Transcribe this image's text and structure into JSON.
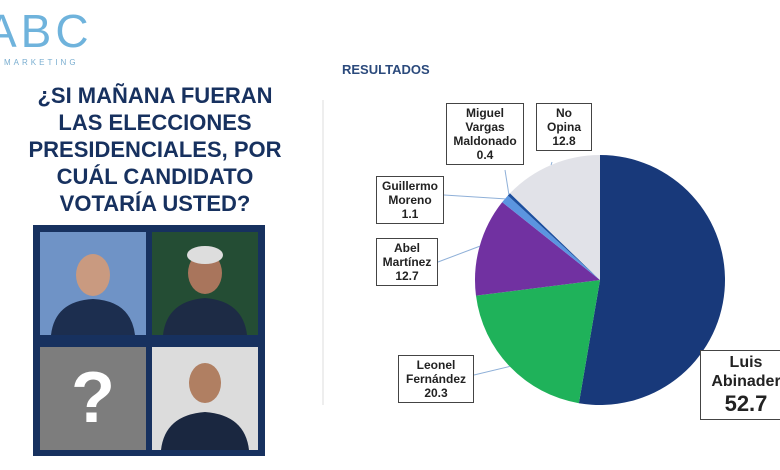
{
  "logo": {
    "text": "ABC",
    "subtext": "MARKETING"
  },
  "question": "¿SI MAÑANA FUERAN LAS ELECCIONES PRESIDENCIALES, POR CUÁL CANDIDATO VOTARÍA USTED?",
  "photos": {
    "unknown_label": "?"
  },
  "chart_data": {
    "type": "pie",
    "title": "RESULTADOS",
    "categories": [
      "Luis Abinader",
      "Leonel Fernández",
      "Abel Martínez",
      "Guillermo Moreno",
      "Miguel Vargas Maldonado",
      "No Opina"
    ],
    "values": [
      52.7,
      20.3,
      12.7,
      1.1,
      0.4,
      12.8
    ],
    "colors": [
      "#18397a",
      "#1fb25a",
      "#7131a1",
      "#5b95e0",
      "#1d4f9e",
      "#e1e2e8"
    ]
  }
}
